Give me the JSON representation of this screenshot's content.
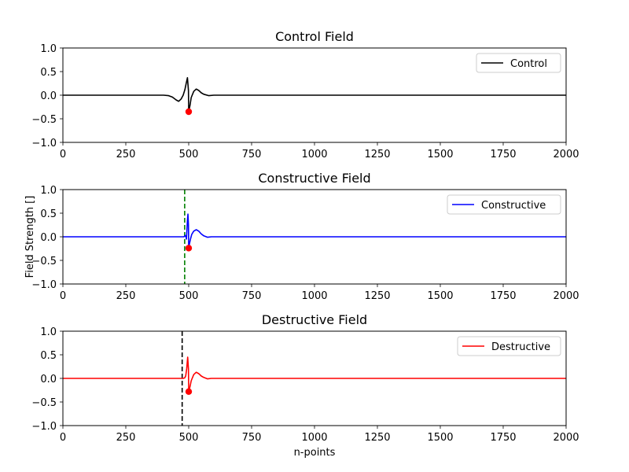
{
  "chart_data": [
    {
      "type": "line",
      "title": "Control Field",
      "xlabel": "",
      "ylabel": "",
      "xlim": [
        0,
        2000
      ],
      "ylim": [
        -1.0,
        1.0
      ],
      "xticks": [
        "0",
        "250",
        "500",
        "750",
        "1000",
        "1250",
        "1500",
        "1750",
        "2000"
      ],
      "yticks": [
        "1.0",
        "0.5",
        "0.0",
        "−0.5",
        "−1.0"
      ],
      "legend_position": "top-right",
      "series": [
        {
          "name": "Control",
          "color": "#000000",
          "x": [
            0,
            400,
            420,
            435,
            450,
            460,
            470,
            478,
            485,
            490,
            495,
            499,
            500,
            505,
            510,
            520,
            530,
            540,
            550,
            560,
            580,
            600,
            620,
            2000
          ],
          "y": [
            0,
            0,
            -0.01,
            -0.04,
            -0.1,
            -0.13,
            -0.08,
            0.0,
            0.12,
            0.25,
            0.37,
            0.1,
            -0.35,
            -0.22,
            -0.05,
            0.08,
            0.13,
            0.1,
            0.05,
            0.02,
            -0.01,
            0,
            0,
            0
          ]
        }
      ],
      "marker": {
        "x": 500,
        "y": -0.35,
        "color": "#ff0000"
      },
      "vline": null
    },
    {
      "type": "line",
      "title": "Constructive Field",
      "xlabel": "",
      "ylabel": "Field Strength []",
      "xlim": [
        0,
        2000
      ],
      "ylim": [
        -1.0,
        1.0
      ],
      "xticks": [
        "0",
        "250",
        "500",
        "750",
        "1000",
        "1250",
        "1500",
        "1750",
        "2000"
      ],
      "yticks": [
        "1.0",
        "0.5",
        "0.0",
        "−0.5",
        "−1.0"
      ],
      "legend_position": "top-right",
      "series": [
        {
          "name": "Constructive",
          "color": "#0000ff",
          "x": [
            0,
            480,
            484,
            486,
            489,
            491,
            493,
            495,
            497,
            499,
            500,
            503,
            507,
            512,
            520,
            530,
            540,
            550,
            560,
            575,
            590,
            620,
            2000
          ],
          "y": [
            0,
            0,
            0.01,
            0.03,
            0.0,
            -0.05,
            0.15,
            0.35,
            0.48,
            0.25,
            -0.24,
            -0.15,
            -0.05,
            0.05,
            0.12,
            0.15,
            0.12,
            0.06,
            0.02,
            -0.01,
            0,
            0,
            0
          ]
        }
      ],
      "marker": {
        "x": 500,
        "y": -0.24,
        "color": "#ff0000"
      },
      "vline": {
        "x": 484,
        "color": "#008000",
        "style": "dashed"
      }
    },
    {
      "type": "line",
      "title": "Destructive Field",
      "xlabel": "n-points",
      "ylabel": "",
      "xlim": [
        0,
        2000
      ],
      "ylim": [
        -1.0,
        1.0
      ],
      "xticks": [
        "0",
        "250",
        "500",
        "750",
        "1000",
        "1250",
        "1500",
        "1750",
        "2000"
      ],
      "yticks": [
        "1.0",
        "0.5",
        "0.0",
        "−0.5",
        "−1.0"
      ],
      "legend_position": "top-right",
      "series": [
        {
          "name": "Destructive",
          "color": "#ff0000",
          "x": [
            0,
            470,
            478,
            484,
            488,
            492,
            496,
            499,
            500,
            505,
            510,
            520,
            530,
            540,
            550,
            560,
            575,
            590,
            620,
            2000
          ],
          "y": [
            0,
            0,
            0.0,
            0.01,
            0.05,
            0.2,
            0.45,
            0.2,
            -0.28,
            -0.18,
            -0.05,
            0.08,
            0.13,
            0.1,
            0.05,
            0.02,
            -0.01,
            0,
            0,
            0
          ]
        }
      ],
      "marker": {
        "x": 500,
        "y": -0.28,
        "color": "#ff0000"
      },
      "vline": {
        "x": 474,
        "color": "#000000",
        "style": "dashed"
      }
    }
  ]
}
